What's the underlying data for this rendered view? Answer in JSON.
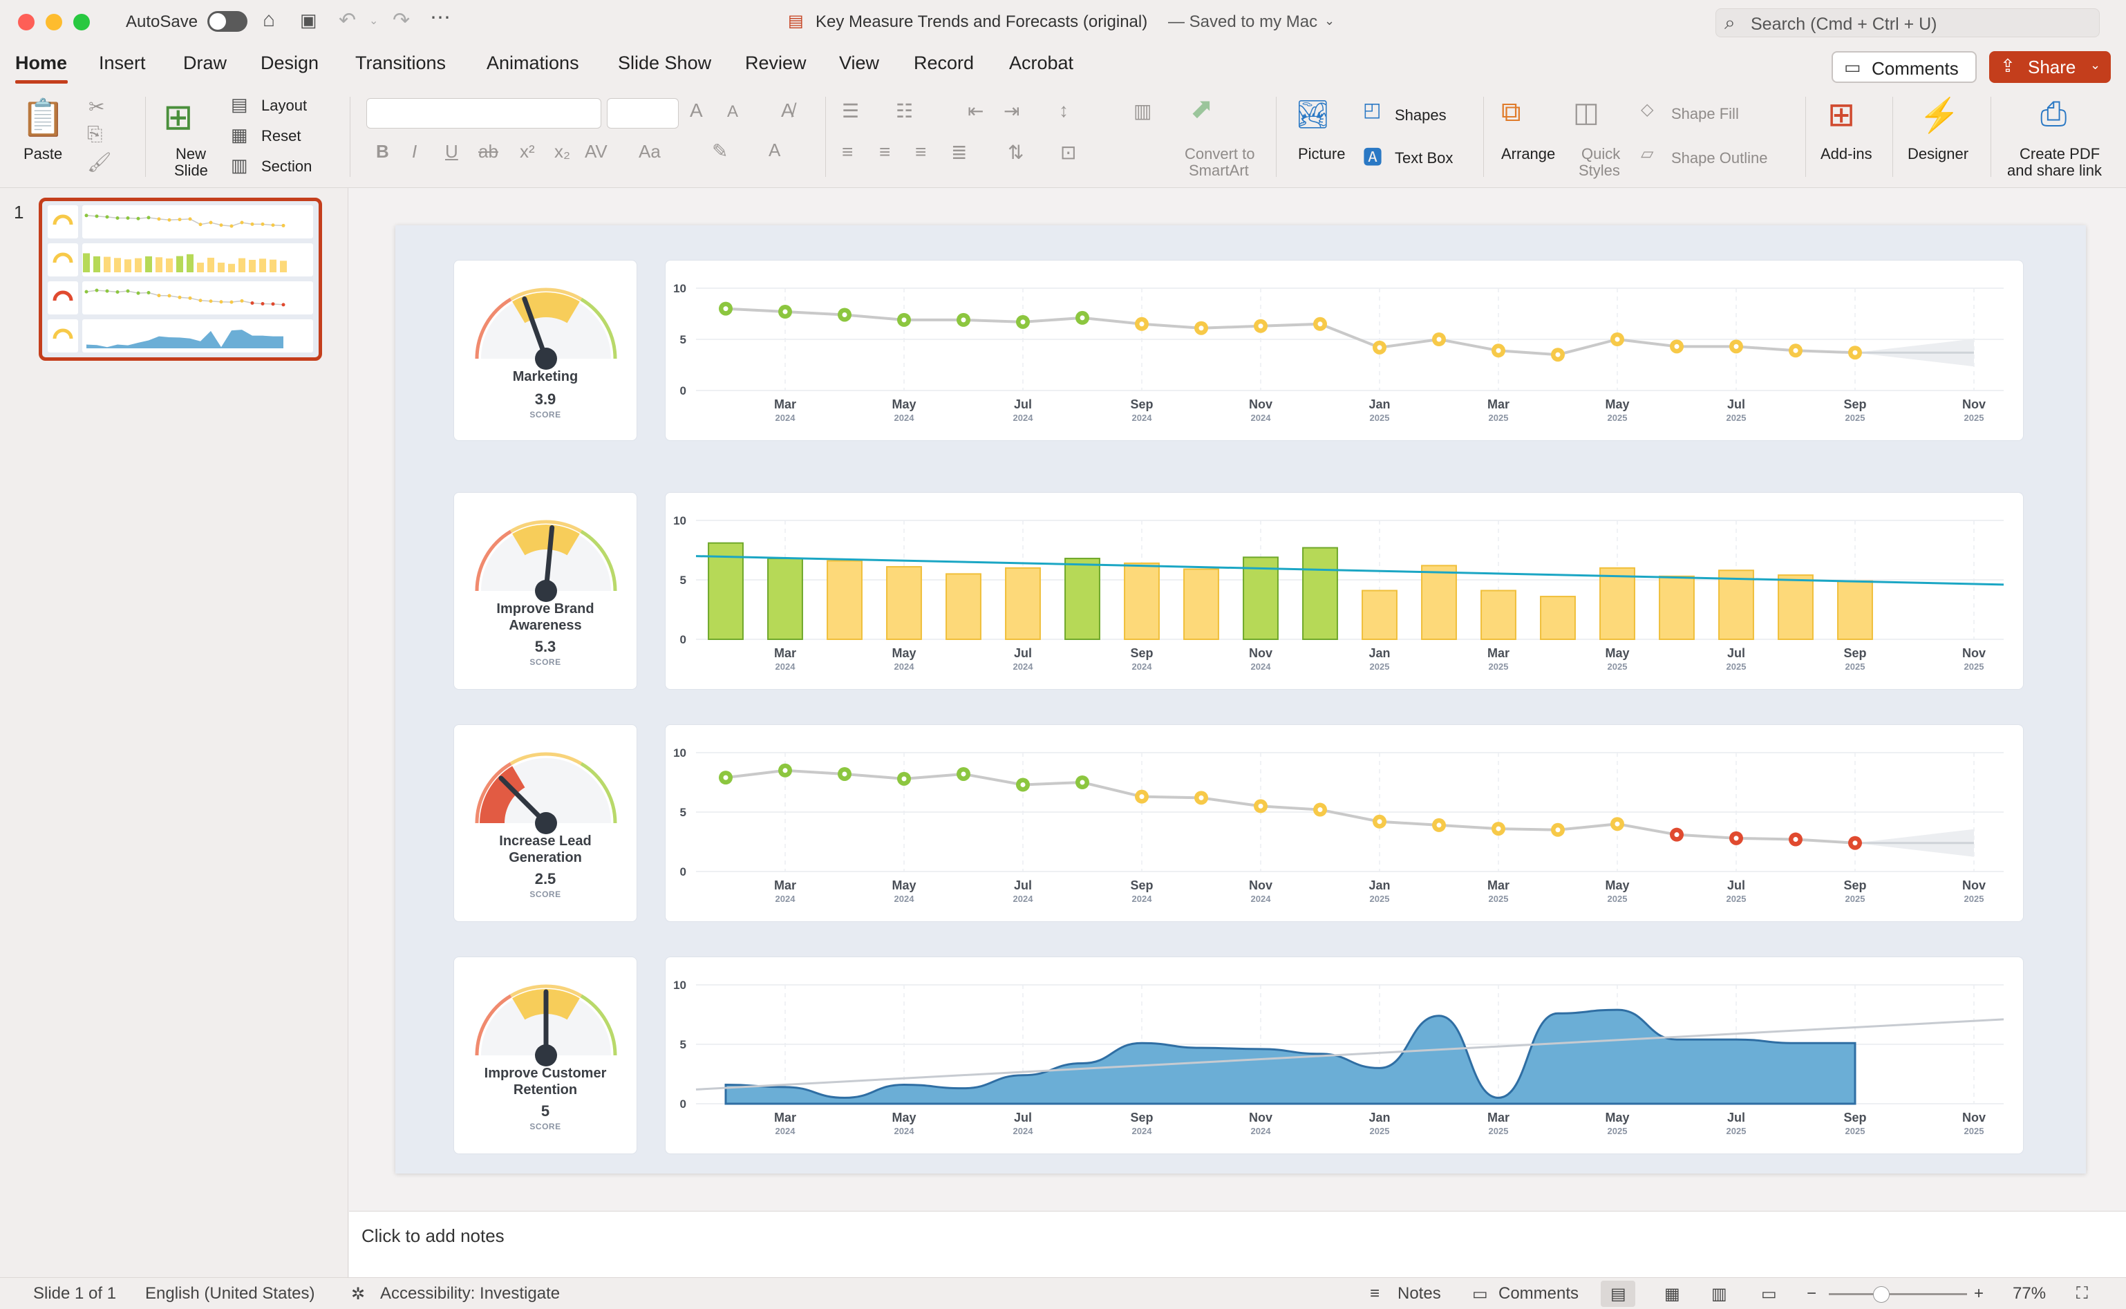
{
  "window": {
    "autosave_label": "AutoSave",
    "doc_title": "Key Measure Trends and Forecasts (original)",
    "save_status": "— Saved to my Mac",
    "search_placeholder": "Search (Cmd + Ctrl + U)"
  },
  "menu": {
    "tabs": [
      "Home",
      "Insert",
      "Draw",
      "Design",
      "Transitions",
      "Animations",
      "Slide Show",
      "Review",
      "View",
      "Record",
      "Acrobat"
    ],
    "comments_label": "Comments",
    "share_label": "Share"
  },
  "ribbon": {
    "paste": "Paste",
    "new_slide_1": "New",
    "new_slide_2": "Slide",
    "layout": "Layout",
    "reset": "Reset",
    "section": "Section",
    "convert_1": "Convert to",
    "convert_2": "SmartArt",
    "picture": "Picture",
    "shapes": "Shapes",
    "text_box": "Text Box",
    "arrange": "Arrange",
    "quick_styles_1": "Quick",
    "quick_styles_2": "Styles",
    "shape_fill": "Shape Fill",
    "shape_outline": "Shape Outline",
    "add_ins": "Add-ins",
    "designer": "Designer",
    "create_pdf_1": "Create PDF",
    "create_pdf_2": "and share link"
  },
  "thumbnails": {
    "slide_number": "1"
  },
  "slide": {
    "score_label": "SCORE",
    "x_ticks": [
      {
        "m": "Mar",
        "y": "2024"
      },
      {
        "m": "May",
        "y": "2024"
      },
      {
        "m": "Jul",
        "y": "2024"
      },
      {
        "m": "Sep",
        "y": "2024"
      },
      {
        "m": "Nov",
        "y": "2024"
      },
      {
        "m": "Jan",
        "y": "2025"
      },
      {
        "m": "Mar",
        "y": "2025"
      },
      {
        "m": "May",
        "y": "2025"
      },
      {
        "m": "Jul",
        "y": "2025"
      },
      {
        "m": "Sep",
        "y": "2025"
      },
      {
        "m": "Nov",
        "y": "2025"
      }
    ],
    "y_ticks": [
      "10",
      "5",
      "0"
    ],
    "measures": [
      {
        "name_1": "Marketing",
        "name_2": "",
        "score": "3.9"
      },
      {
        "name_1": "Improve Brand",
        "name_2": "Awareness",
        "score": "5.3"
      },
      {
        "name_1": "Increase Lead",
        "name_2": "Generation",
        "score": "2.5"
      },
      {
        "name_1": "Improve Customer",
        "name_2": "Retention",
        "score": "5"
      }
    ]
  },
  "colors": {
    "accent": "#c43e1c",
    "green": "#8cc63f",
    "yellow": "#f7c948",
    "red": "#e04a2f",
    "area_blue": "#6baed6",
    "trend_teal": "#1ba6c4"
  },
  "chart_data": [
    {
      "type": "line",
      "ylim": [
        0,
        10
      ],
      "x": [
        "Feb 2024",
        "Mar 2024",
        "Apr 2024",
        "May 2024",
        "Jun 2024",
        "Jul 2024",
        "Aug 2024",
        "Sep 2024",
        "Oct 2024",
        "Nov 2024",
        "Dec 2024",
        "Jan 2025",
        "Feb 2025",
        "Mar 2025",
        "Apr 2025",
        "May 2025",
        "Jun 2025",
        "Jul 2025",
        "Aug 2025",
        "Sep 2025"
      ],
      "series": [
        {
          "values": [
            8.0,
            7.7,
            7.4,
            6.9,
            6.9,
            6.7,
            7.1,
            6.5,
            6.1,
            6.3,
            6.5,
            4.2,
            5.0,
            3.9,
            3.5,
            5.0,
            4.3,
            4.3,
            3.9,
            3.7
          ]
        }
      ],
      "forecast_to": "Nov 2025"
    },
    {
      "type": "bar",
      "ylim": [
        0,
        10
      ],
      "x": [
        "Feb 2024",
        "Mar 2024",
        "Apr 2024",
        "May 2024",
        "Jun 2024",
        "Jul 2024",
        "Aug 2024",
        "Sep 2024",
        "Oct 2024",
        "Nov 2024",
        "Dec 2024",
        "Jan 2025",
        "Feb 2025",
        "Mar 2025",
        "Apr 2025",
        "May 2025",
        "Jun 2025",
        "Jul 2025",
        "Aug 2025",
        "Sep 2025"
      ],
      "series": [
        {
          "values": [
            8.1,
            6.8,
            6.6,
            6.1,
            5.5,
            6.0,
            6.8,
            6.4,
            5.9,
            6.9,
            7.7,
            4.1,
            6.2,
            4.1,
            3.6,
            6.0,
            5.3,
            5.8,
            5.4,
            4.9
          ]
        }
      ],
      "trend": [
        7.0,
        4.6
      ]
    },
    {
      "type": "line",
      "ylim": [
        0,
        10
      ],
      "x": [
        "Feb 2024",
        "Mar 2024",
        "Apr 2024",
        "May 2024",
        "Jun 2024",
        "Jul 2024",
        "Aug 2024",
        "Sep 2024",
        "Oct 2024",
        "Nov 2024",
        "Dec 2024",
        "Jan 2025",
        "Feb 2025",
        "Mar 2025",
        "Apr 2025",
        "May 2025",
        "Jun 2025",
        "Jul 2025",
        "Aug 2025",
        "Sep 2025"
      ],
      "series": [
        {
          "values": [
            7.9,
            8.5,
            8.2,
            7.8,
            8.2,
            7.3,
            7.5,
            6.3,
            6.2,
            5.5,
            5.2,
            4.2,
            3.9,
            3.6,
            3.5,
            4.0,
            3.1,
            2.8,
            2.7,
            2.4
          ]
        }
      ],
      "forecast_to": "Nov 2025"
    },
    {
      "type": "area",
      "ylim": [
        0,
        10
      ],
      "x": [
        "Feb 2024",
        "Mar 2024",
        "Apr 2024",
        "May 2024",
        "Jun 2024",
        "Jul 2024",
        "Aug 2024",
        "Sep 2024",
        "Oct 2024",
        "Nov 2024",
        "Dec 2024",
        "Jan 2025",
        "Feb 2025",
        "Mar 2025",
        "Apr 2025",
        "May 2025",
        "Jun 2025",
        "Jul 2025",
        "Aug 2025",
        "Sep 2025"
      ],
      "series": [
        {
          "values": [
            1.6,
            1.4,
            0.5,
            1.6,
            1.3,
            2.4,
            3.4,
            5.1,
            4.7,
            4.6,
            4.2,
            3.0,
            7.4,
            0.5,
            7.6,
            7.9,
            5.4,
            5.4,
            5.1,
            5.1
          ]
        }
      ],
      "trend": [
        1.2,
        7.1
      ]
    }
  ]
}
